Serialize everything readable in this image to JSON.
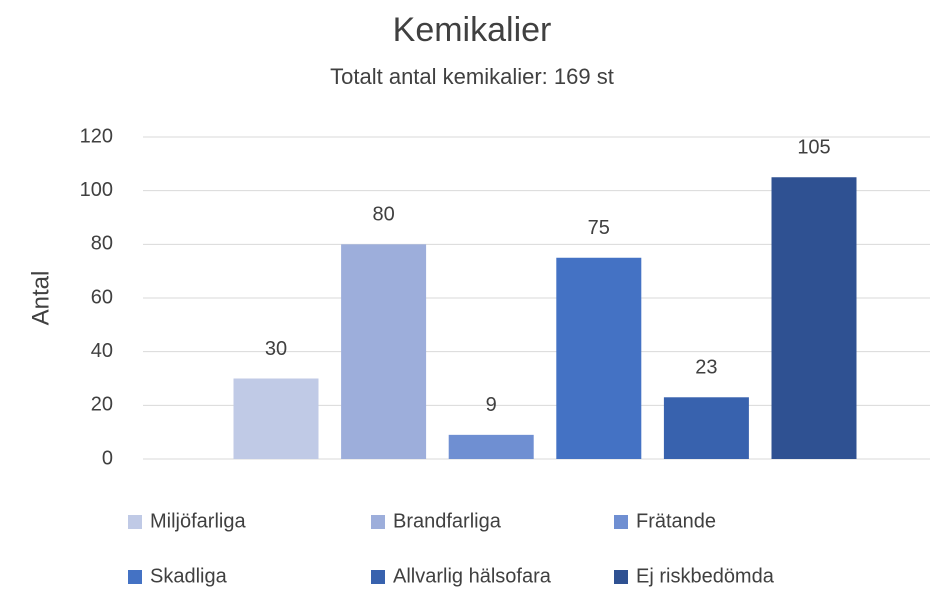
{
  "chart_data": {
    "type": "bar",
    "title": "Kemikalier",
    "subtitle": "Totalt antal kemikalier: 169 st",
    "y_label": "Antal",
    "categories": [
      null
    ],
    "series": [
      {
        "name": "Miljöfarliga",
        "color": "#c0cae6",
        "values": [
          30
        ]
      },
      {
        "name": "Brandfarliga",
        "color": "#9daedb",
        "values": [
          80
        ]
      },
      {
        "name": "Frätande",
        "color": "#6f8fd2",
        "values": [
          9
        ]
      },
      {
        "name": "Skadliga",
        "color": "#4472c4",
        "values": [
          75
        ]
      },
      {
        "name": "Allvarlig hälsofara",
        "color": "#3862ae",
        "values": [
          23
        ]
      },
      {
        "name": "Ej riskbedömda",
        "color": "#2f5192",
        "values": [
          105
        ]
      }
    ],
    "ylim": [
      0,
      120
    ],
    "yticks": [
      0,
      20,
      40,
      60,
      80,
      100,
      120
    ],
    "grid": true,
    "legend": "bottom"
  }
}
